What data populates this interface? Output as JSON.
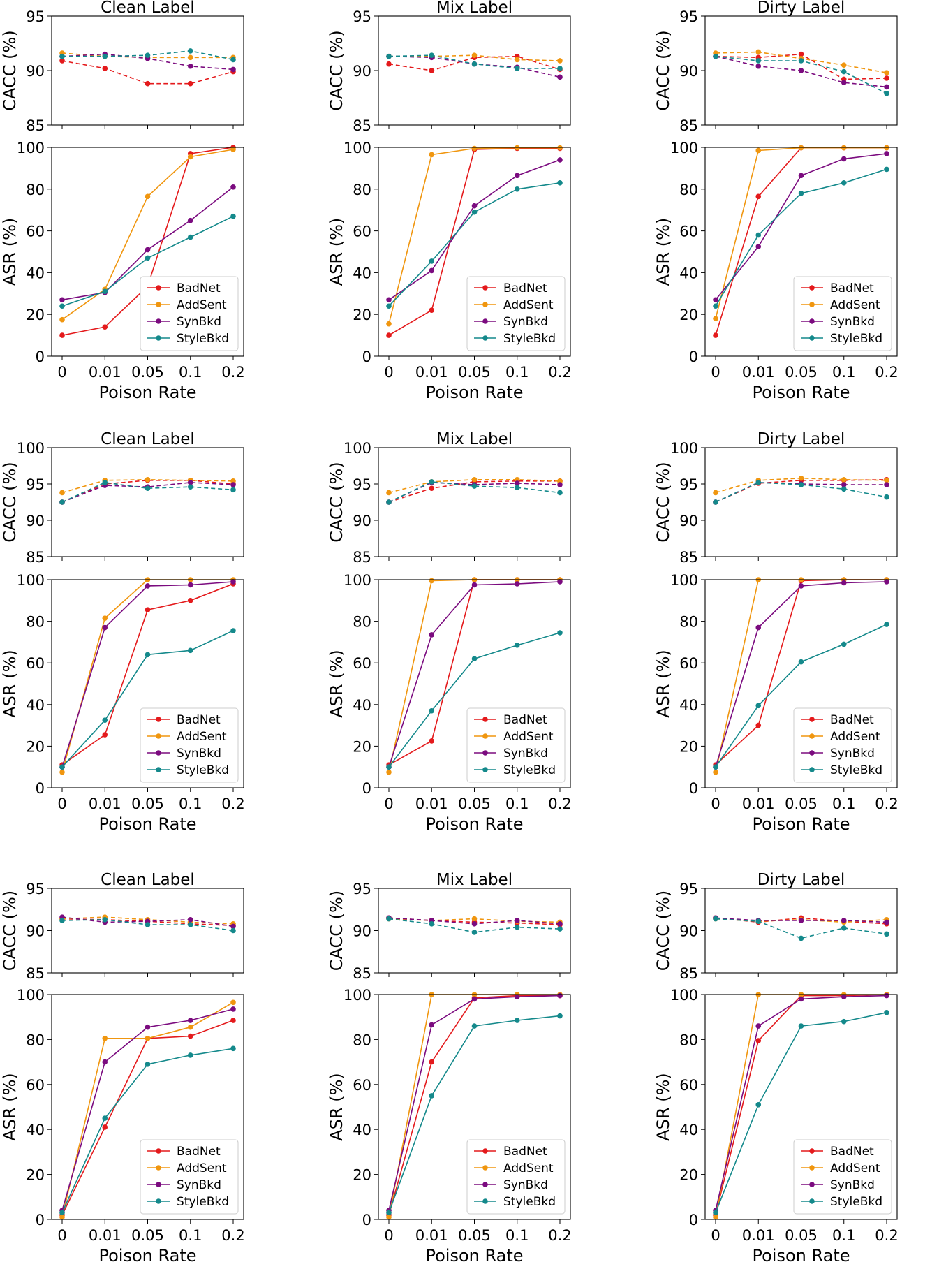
{
  "colors": {
    "BadNet": "#e41a1c",
    "AddSent": "#f0960f",
    "SynBkd": "#7b0b7f",
    "StyleBkd": "#14898b"
  },
  "common": {
    "x_ticks": [
      "0",
      "0.01",
      "0.05",
      "0.1",
      "0.2"
    ],
    "xlabel": "Poison Rate",
    "cacc_ylabel": "CACC (%)",
    "asr_ylabel": "ASR (%)",
    "legend": [
      "BadNet",
      "AddSent",
      "SynBkd",
      "StyleBkd"
    ]
  },
  "chart_data": [
    {
      "type": "line",
      "group": 0,
      "column": 0,
      "title": "Clean Label",
      "cacc": {
        "ylim": [
          85,
          95
        ],
        "yticks": [
          85,
          90,
          95
        ],
        "style": "dashed",
        "series": [
          {
            "name": "BadNet",
            "values": [
              90.9,
              90.2,
              88.8,
              88.8,
              89.9
            ]
          },
          {
            "name": "AddSent",
            "values": [
              91.6,
              91.3,
              91.2,
              91.2,
              91.2
            ]
          },
          {
            "name": "SynBkd",
            "values": [
              91.3,
              91.5,
              91.1,
              90.4,
              90.1
            ]
          },
          {
            "name": "StyleBkd",
            "values": [
              91.3,
              91.3,
              91.4,
              91.8,
              91.0
            ]
          }
        ]
      },
      "asr": {
        "ylim": [
          0,
          100
        ],
        "yticks": [
          0,
          20,
          40,
          60,
          80,
          100
        ],
        "style": "solid",
        "series": [
          {
            "name": "BadNet",
            "values": [
              10,
              14,
              33.5,
              97,
              100
            ]
          },
          {
            "name": "AddSent",
            "values": [
              17.5,
              32,
              76.5,
              95.5,
              99
            ]
          },
          {
            "name": "SynBkd",
            "values": [
              27,
              30.5,
              51,
              65,
              81
            ]
          },
          {
            "name": "StyleBkd",
            "values": [
              24,
              31,
              47,
              57,
              67
            ]
          }
        ]
      }
    },
    {
      "type": "line",
      "group": 0,
      "column": 1,
      "title": "Mix Label",
      "cacc": {
        "ylim": [
          85,
          95
        ],
        "yticks": [
          85,
          90,
          95
        ],
        "style": "dashed",
        "series": [
          {
            "name": "BadNet",
            "values": [
              90.6,
              90.0,
              91.2,
              91.3,
              90.1
            ]
          },
          {
            "name": "AddSent",
            "values": [
              91.3,
              91.3,
              91.4,
              91.0,
              90.9
            ]
          },
          {
            "name": "SynBkd",
            "values": [
              91.3,
              91.2,
              90.6,
              90.3,
              89.4
            ]
          },
          {
            "name": "StyleBkd",
            "values": [
              91.3,
              91.4,
              90.6,
              90.2,
              90.2
            ]
          }
        ]
      },
      "asr": {
        "ylim": [
          0,
          100
        ],
        "yticks": [
          0,
          20,
          40,
          60,
          80,
          100
        ],
        "style": "solid",
        "series": [
          {
            "name": "BadNet",
            "values": [
              10,
              22,
              99,
              99.5,
              99.5
            ]
          },
          {
            "name": "AddSent",
            "values": [
              15.5,
              96.5,
              99.5,
              99.8,
              99.8
            ]
          },
          {
            "name": "SynBkd",
            "values": [
              27,
              41,
              72,
              86.5,
              94
            ]
          },
          {
            "name": "StyleBkd",
            "values": [
              24,
              45.5,
              69,
              80,
              83
            ]
          }
        ]
      }
    },
    {
      "type": "line",
      "group": 0,
      "column": 2,
      "title": "Dirty Label",
      "cacc": {
        "ylim": [
          85,
          95
        ],
        "yticks": [
          85,
          90,
          95
        ],
        "style": "dashed",
        "series": [
          {
            "name": "BadNet",
            "values": [
              91.3,
              91.2,
              91.5,
              89.2,
              89.3
            ]
          },
          {
            "name": "AddSent",
            "values": [
              91.6,
              91.7,
              91.1,
              90.5,
              89.8
            ]
          },
          {
            "name": "SynBkd",
            "values": [
              91.3,
              90.4,
              90.0,
              88.9,
              88.5
            ]
          },
          {
            "name": "StyleBkd",
            "values": [
              91.3,
              90.9,
              90.9,
              89.9,
              87.9
            ]
          }
        ]
      },
      "asr": {
        "ylim": [
          0,
          100
        ],
        "yticks": [
          0,
          20,
          40,
          60,
          80,
          100
        ],
        "style": "solid",
        "series": [
          {
            "name": "BadNet",
            "values": [
              10,
              76.5,
              99.8,
              99.8,
              99.8
            ]
          },
          {
            "name": "AddSent",
            "values": [
              18,
              98.5,
              99.8,
              99.8,
              99.8
            ]
          },
          {
            "name": "SynBkd",
            "values": [
              27,
              52.5,
              86.5,
              94.5,
              97
            ]
          },
          {
            "name": "StyleBkd",
            "values": [
              24,
              58,
              78,
              83,
              89.5
            ]
          }
        ]
      }
    },
    {
      "type": "line",
      "group": 1,
      "column": 0,
      "title": "Clean Label",
      "cacc": {
        "ylim": [
          85,
          100
        ],
        "yticks": [
          85,
          90,
          95,
          100
        ],
        "style": "dashed",
        "series": [
          {
            "name": "BadNet",
            "values": [
              92.5,
              95.0,
              95.5,
              95.5,
              95.0
            ]
          },
          {
            "name": "AddSent",
            "values": [
              93.8,
              95.5,
              95.6,
              95.5,
              95.4
            ]
          },
          {
            "name": "SynBkd",
            "values": [
              92.5,
              94.8,
              94.6,
              95.2,
              94.9
            ]
          },
          {
            "name": "StyleBkd",
            "values": [
              92.5,
              95.2,
              94.4,
              94.6,
              94.2
            ]
          }
        ]
      },
      "asr": {
        "ylim": [
          0,
          100
        ],
        "yticks": [
          0,
          20,
          40,
          60,
          80,
          100
        ],
        "style": "solid",
        "series": [
          {
            "name": "BadNet",
            "values": [
              11,
              25.5,
              85.5,
              90,
              98
            ]
          },
          {
            "name": "AddSent",
            "values": [
              7.5,
              81.5,
              100,
              100,
              100
            ]
          },
          {
            "name": "SynBkd",
            "values": [
              10,
              77,
              97,
              97.5,
              99
            ]
          },
          {
            "name": "StyleBkd",
            "values": [
              10,
              32.5,
              64,
              66,
              75.5
            ]
          }
        ]
      }
    },
    {
      "type": "line",
      "group": 1,
      "column": 1,
      "title": "Mix Label",
      "cacc": {
        "ylim": [
          85,
          100
        ],
        "yticks": [
          85,
          90,
          95,
          100
        ],
        "style": "dashed",
        "series": [
          {
            "name": "BadNet",
            "values": [
              92.5,
              94.4,
              95.3,
              95.4,
              95.4
            ]
          },
          {
            "name": "AddSent",
            "values": [
              93.8,
              95.3,
              95.6,
              95.6,
              95.4
            ]
          },
          {
            "name": "SynBkd",
            "values": [
              92.5,
              95.2,
              94.9,
              95.1,
              94.9
            ]
          },
          {
            "name": "StyleBkd",
            "values": [
              92.5,
              95.3,
              94.7,
              94.5,
              93.8
            ]
          }
        ]
      },
      "asr": {
        "ylim": [
          0,
          100
        ],
        "yticks": [
          0,
          20,
          40,
          60,
          80,
          100
        ],
        "style": "solid",
        "series": [
          {
            "name": "BadNet",
            "values": [
              11,
              22.5,
              100,
              100,
              100
            ]
          },
          {
            "name": "AddSent",
            "values": [
              7.5,
              99.5,
              100,
              100,
              100
            ]
          },
          {
            "name": "SynBkd",
            "values": [
              10,
              73.5,
              97.5,
              98,
              99
            ]
          },
          {
            "name": "StyleBkd",
            "values": [
              10,
              37,
              62,
              68.5,
              74.5
            ]
          }
        ]
      }
    },
    {
      "type": "line",
      "group": 1,
      "column": 2,
      "title": "Dirty Label",
      "cacc": {
        "ylim": [
          85,
          100
        ],
        "yticks": [
          85,
          90,
          95,
          100
        ],
        "style": "dashed",
        "series": [
          {
            "name": "BadNet",
            "values": [
              92.5,
              95.1,
              95.5,
              95.5,
              95.6
            ]
          },
          {
            "name": "AddSent",
            "values": [
              93.8,
              95.5,
              95.8,
              95.6,
              95.5
            ]
          },
          {
            "name": "SynBkd",
            "values": [
              92.5,
              95.2,
              95.0,
              94.9,
              94.9
            ]
          },
          {
            "name": "StyleBkd",
            "values": [
              92.5,
              95.2,
              94.9,
              94.3,
              93.2
            ]
          }
        ]
      },
      "asr": {
        "ylim": [
          0,
          100
        ],
        "yticks": [
          0,
          20,
          40,
          60,
          80,
          100
        ],
        "style": "solid",
        "series": [
          {
            "name": "BadNet",
            "values": [
              11,
              30,
              99.5,
              100,
              100
            ]
          },
          {
            "name": "AddSent",
            "values": [
              7.5,
              100,
              100,
              100,
              100
            ]
          },
          {
            "name": "SynBkd",
            "values": [
              10,
              77,
              97,
              98.5,
              99
            ]
          },
          {
            "name": "StyleBkd",
            "values": [
              10,
              39.5,
              60.5,
              69,
              78.5
            ]
          }
        ]
      }
    },
    {
      "type": "line",
      "group": 2,
      "column": 0,
      "title": "Clean Label",
      "cacc": {
        "ylim": [
          85,
          95
        ],
        "yticks": [
          85,
          90,
          95
        ],
        "style": "dashed",
        "series": [
          {
            "name": "BadNet",
            "values": [
              91.4,
              91.3,
              91.1,
              90.8,
              90.6
            ]
          },
          {
            "name": "AddSent",
            "values": [
              91.4,
              91.6,
              91.3,
              91.0,
              90.8
            ]
          },
          {
            "name": "SynBkd",
            "values": [
              91.6,
              91.0,
              91.1,
              91.3,
              90.5
            ]
          },
          {
            "name": "StyleBkd",
            "values": [
              91.2,
              91.3,
              90.7,
              90.7,
              90.0
            ]
          }
        ]
      },
      "asr": {
        "ylim": [
          0,
          100
        ],
        "yticks": [
          0,
          20,
          40,
          60,
          80,
          100
        ],
        "style": "solid",
        "series": [
          {
            "name": "BadNet",
            "values": [
              2,
              41,
              80.5,
              81.5,
              88.5
            ]
          },
          {
            "name": "AddSent",
            "values": [
              1,
              80.5,
              80.5,
              85.5,
              96.5
            ]
          },
          {
            "name": "SynBkd",
            "values": [
              4,
              70,
              85.5,
              88.5,
              93.5
            ]
          },
          {
            "name": "StyleBkd",
            "values": [
              3,
              45,
              69,
              73,
              76
            ]
          }
        ]
      }
    },
    {
      "type": "line",
      "group": 2,
      "column": 1,
      "title": "Mix Label",
      "cacc": {
        "ylim": [
          85,
          95
        ],
        "yticks": [
          85,
          90,
          95
        ],
        "style": "dashed",
        "series": [
          {
            "name": "BadNet",
            "values": [
              91.5,
              91.2,
              91.0,
              90.9,
              90.7
            ]
          },
          {
            "name": "AddSent",
            "values": [
              91.4,
              91.2,
              91.4,
              91.1,
              91.0
            ]
          },
          {
            "name": "SynBkd",
            "values": [
              91.5,
              91.2,
              90.8,
              91.2,
              90.8
            ]
          },
          {
            "name": "StyleBkd",
            "values": [
              91.4,
              90.8,
              89.8,
              90.4,
              90.2
            ]
          }
        ]
      },
      "asr": {
        "ylim": [
          0,
          100
        ],
        "yticks": [
          0,
          20,
          40,
          60,
          80,
          100
        ],
        "style": "solid",
        "series": [
          {
            "name": "BadNet",
            "values": [
              2,
              70,
              98.5,
              99.5,
              99.5
            ]
          },
          {
            "name": "AddSent",
            "values": [
              1,
              100,
              100,
              100,
              100
            ]
          },
          {
            "name": "SynBkd",
            "values": [
              4,
              86.5,
              98,
              99,
              99.5
            ]
          },
          {
            "name": "StyleBkd",
            "values": [
              3,
              55,
              86,
              88.5,
              90.5
            ]
          }
        ]
      }
    },
    {
      "type": "line",
      "group": 2,
      "column": 2,
      "title": "Dirty Label",
      "cacc": {
        "ylim": [
          85,
          95
        ],
        "yticks": [
          85,
          90,
          95
        ],
        "style": "dashed",
        "series": [
          {
            "name": "BadNet",
            "values": [
              91.5,
              91.0,
              91.5,
              91.1,
              90.8
            ]
          },
          {
            "name": "AddSent",
            "values": [
              91.4,
              91.1,
              91.3,
              91.0,
              91.3
            ]
          },
          {
            "name": "SynBkd",
            "values": [
              91.5,
              91.2,
              91.2,
              91.2,
              91.0
            ]
          },
          {
            "name": "StyleBkd",
            "values": [
              91.4,
              91.1,
              89.1,
              90.3,
              89.6
            ]
          }
        ]
      },
      "asr": {
        "ylim": [
          0,
          100
        ],
        "yticks": [
          0,
          20,
          40,
          60,
          80,
          100
        ],
        "style": "solid",
        "series": [
          {
            "name": "BadNet",
            "values": [
              2,
              79.5,
              99.5,
              99.5,
              100
            ]
          },
          {
            "name": "AddSent",
            "values": [
              1,
              100,
              100,
              100,
              100
            ]
          },
          {
            "name": "SynBkd",
            "values": [
              4,
              86,
              98,
              99,
              99.5
            ]
          },
          {
            "name": "StyleBkd",
            "values": [
              3,
              51,
              86,
              88,
              92
            ]
          }
        ]
      }
    }
  ]
}
